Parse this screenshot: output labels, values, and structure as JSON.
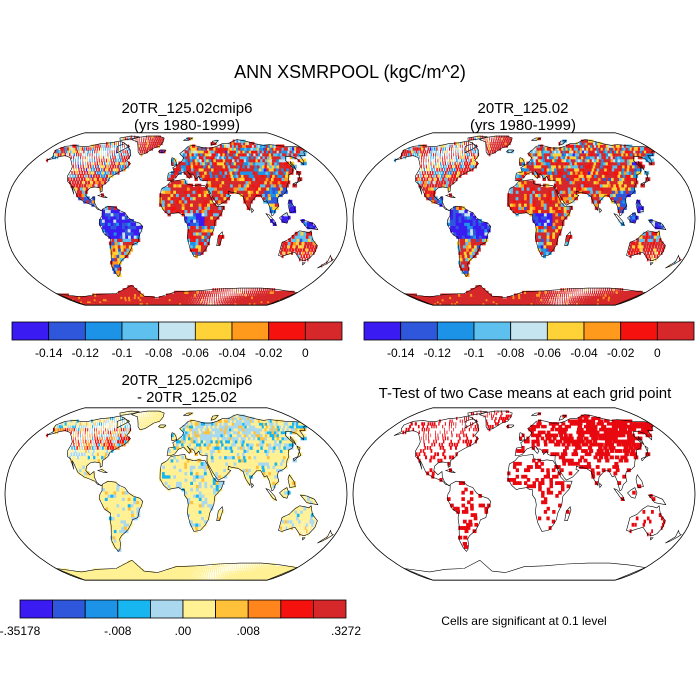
{
  "title": "ANN XSMRPOOL (kgC/m^2)",
  "panels": [
    {
      "id": "p1",
      "title_line1": "20TR_125.02cmip6",
      "title_line2": "(yrs 1980-1999)"
    },
    {
      "id": "p2",
      "title_line1": "20TR_125.02",
      "title_line2": "(yrs 1980-1999)"
    },
    {
      "id": "p3",
      "title_line1": "20TR_125.02cmip6",
      "title_line2": "- 20TR_125.02"
    },
    {
      "id": "p4",
      "title_line1": "T-Test of two Case means at each grid point",
      "title_line2": ""
    }
  ],
  "colorbar_abs": {
    "colors": [
      "#3a1cf2",
      "#2f57dc",
      "#1d93e8",
      "#5ec0ee",
      "#c5e5f1",
      "#ffd338",
      "#ff9a1c",
      "#f5120e",
      "#d6282a"
    ],
    "labels": [
      "-0.14",
      "-0.12",
      "-0.1",
      "-0.08",
      "-0.06",
      "-0.04",
      "-0.02",
      "0"
    ]
  },
  "colorbar_diff": {
    "colors": [
      "#3a1cf2",
      "#2f57dc",
      "#1d93e8",
      "#18b6f0",
      "#a9d8ef",
      "#fff194",
      "#ffc03a",
      "#ff851c",
      "#f5120e",
      "#d6282a"
    ],
    "labels": [
      "-.35178",
      "-.008",
      ".00",
      ".008",
      ".3272"
    ]
  },
  "note": "Cells are significant at 0.1 level"
}
